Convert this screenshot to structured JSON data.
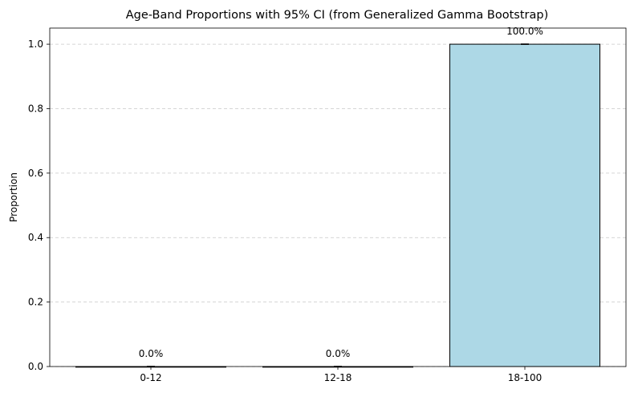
{
  "chart_data": {
    "type": "bar",
    "title": "Age-Band Proportions with 95% CI (from Generalized Gamma Bootstrap)",
    "xlabel": "",
    "ylabel": "Proportion",
    "categories": [
      "0-12",
      "12-18",
      "18-100"
    ],
    "values": [
      0.0,
      0.0,
      1.0
    ],
    "ci_lower": [
      0.0,
      0.0,
      1.0
    ],
    "ci_upper": [
      0.0,
      0.0,
      1.0
    ],
    "data_labels": [
      "0.0%",
      "0.0%",
      "100.0%"
    ],
    "ylim": [
      0,
      1.05
    ],
    "yticks": [
      0.0,
      0.2,
      0.4,
      0.6,
      0.8,
      1.0
    ],
    "ytick_labels": [
      "0.0",
      "0.2",
      "0.4",
      "0.6",
      "0.8",
      "1.0"
    ],
    "grid": "y-dashed",
    "bar_color": "#add8e6",
    "bar_edge_color": "#000000",
    "grid_color": "#c8c8c8"
  }
}
